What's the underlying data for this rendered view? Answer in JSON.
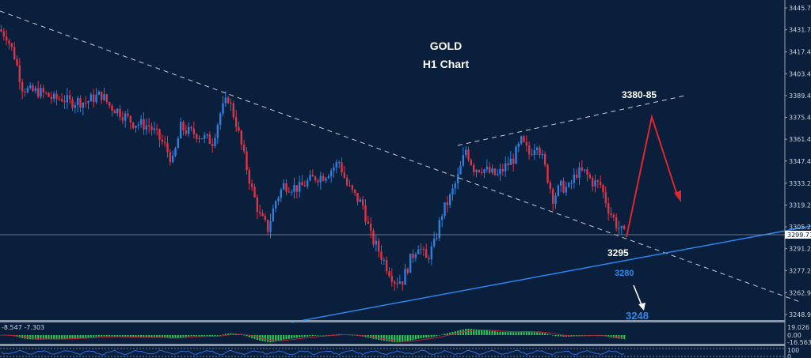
{
  "chart_data": {
    "type": "candlestick",
    "title": "GOLD",
    "subtitle": "H1 Chart",
    "symbol": "GOLD",
    "timeframe": "H1",
    "y_ticks": [
      "3445.70",
      "3431.70",
      "3417.45",
      "3403.45",
      "3389.45",
      "3375.45",
      "3361.45",
      "3347.45",
      "3333.20",
      "3319.20",
      "3305.20",
      "3291.20",
      "3277.20",
      "3262.95",
      "3248.95"
    ],
    "y_tick_values": [
      3445.7,
      3431.7,
      3417.45,
      3403.45,
      3389.45,
      3375.45,
      3361.45,
      3347.45,
      3333.2,
      3319.2,
      3305.2,
      3291.2,
      3277.2,
      3262.95,
      3248.95
    ],
    "ylim": [
      3248.95,
      3445.7
    ],
    "current_price": "3299.71",
    "closes": [
      3428,
      3415,
      3395,
      3392,
      3392,
      3390,
      3387,
      3388,
      3385,
      3386,
      3385,
      3388,
      3390,
      3383,
      3380,
      3376,
      3372,
      3371,
      3370,
      3364,
      3357,
      3347,
      3369,
      3366,
      3365,
      3362,
      3360,
      3378,
      3388,
      3372,
      3350,
      3329,
      3312,
      3304,
      3322,
      3332,
      3331,
      3330,
      3334,
      3337,
      3338,
      3342,
      3347,
      3332,
      3325,
      3319,
      3299,
      3290,
      3280,
      3271,
      3271,
      3284,
      3294,
      3284,
      3294,
      3314,
      3324,
      3337,
      3355,
      3343,
      3343,
      3340,
      3338,
      3344,
      3349,
      3360,
      3352,
      3360,
      3343,
      3324,
      3331,
      3330,
      3340,
      3340,
      3334,
      3332,
      3317,
      3307,
      3300
    ],
    "annotations": {
      "target_up": "3380-85",
      "support_1": "3295",
      "support_2": "3280",
      "support_3": "3248"
    },
    "colors": {
      "background": "#0a1f3b",
      "bull": "#2b7fe0",
      "bear": "#e23246",
      "resistance_line": "#c8ccd4",
      "support_line": "#2a86ee",
      "projection_arrow": "#e0262e",
      "down_arrow": "#ffffff",
      "label_blue": "#2a8af0"
    },
    "indicator": {
      "type": "MACD",
      "values_label": "-8.547 -7.303",
      "y_ticks": [
        "19.026",
        "0.00",
        "-16.563"
      ],
      "histogram_color": "#27d154",
      "signal_color": "#c0203a"
    },
    "indicator2": {
      "y_ticks": [
        "100",
        "0"
      ]
    },
    "grid": false
  }
}
